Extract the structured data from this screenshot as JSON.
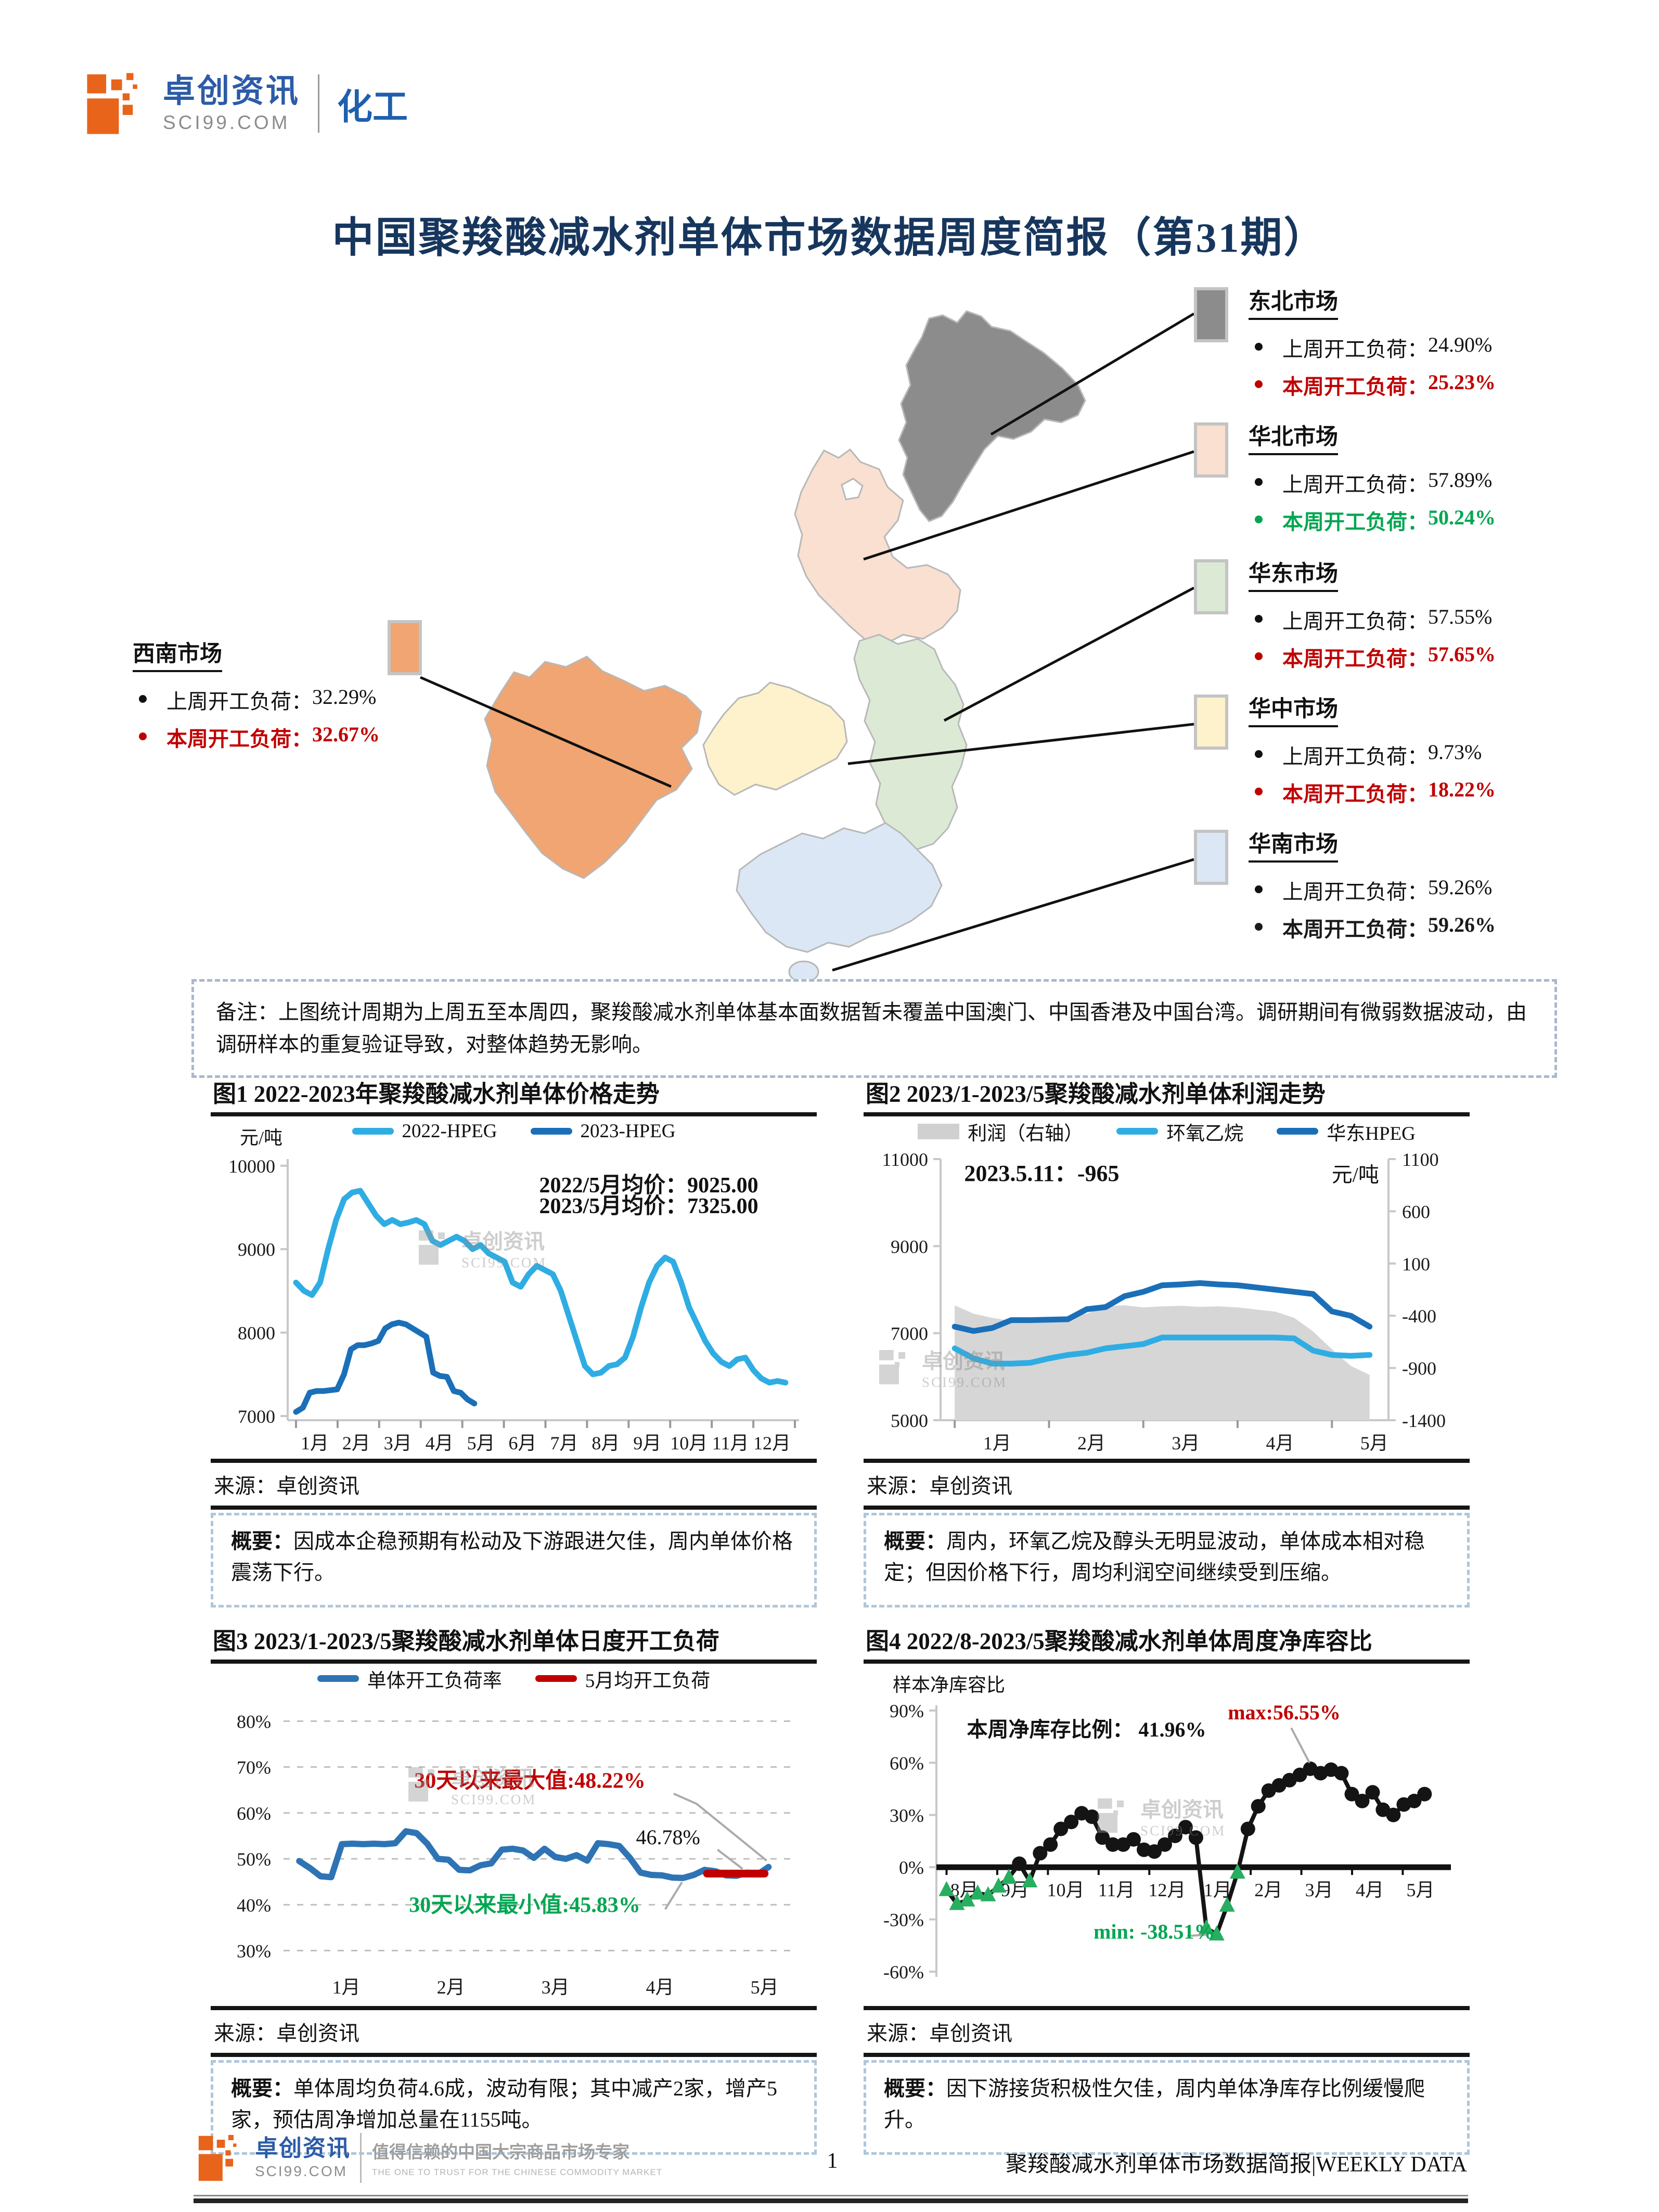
{
  "header": {
    "logo": {
      "brand": "卓创资讯",
      "domain": "SCI99.COM",
      "division": "化工"
    },
    "title": "中国聚羧酸减水剂单体市场数据周度简报（第31期）"
  },
  "map": {
    "markets": [
      {
        "id": "northeast",
        "name": "东北市场",
        "last_week_label": "上周开工负荷：",
        "last_week": "24.90%",
        "this_week_label": "本周开工负荷：",
        "this_week": "25.23%",
        "this_week_color": "#C00000",
        "swatch": "#8C8C8C"
      },
      {
        "id": "north",
        "name": "华北市场",
        "last_week_label": "上周开工负荷：",
        "last_week": "57.89%",
        "this_week_label": "本周开工负荷：",
        "this_week": "50.24%",
        "this_week_color": "#00A651",
        "swatch": "#F9E0D1"
      },
      {
        "id": "east",
        "name": "华东市场",
        "last_week_label": "上周开工负荷：",
        "last_week": "57.55%",
        "this_week_label": "本周开工负荷：",
        "this_week": "57.65%",
        "this_week_color": "#C00000",
        "swatch": "#DCEAD5"
      },
      {
        "id": "central",
        "name": "华中市场",
        "last_week_label": "上周开工负荷：",
        "last_week": "9.73%",
        "this_week_label": "本周开工负荷：",
        "this_week": "18.22%",
        "this_week_color": "#C00000",
        "swatch": "#FDF2CC"
      },
      {
        "id": "south",
        "name": "华南市场",
        "last_week_label": "上周开工负荷：",
        "last_week": "59.26%",
        "this_week_label": "本周开工负荷：",
        "this_week": "59.26%",
        "this_week_color": "#1A1A1A",
        "swatch": "#DBE7F4"
      },
      {
        "id": "southwest",
        "name": "西南市场",
        "last_week_label": "上周开工负荷：",
        "last_week": "32.29%",
        "this_week_label": "本周开工负荷：",
        "this_week": "32.67%",
        "this_week_color": "#C00000",
        "swatch": "#F0A572"
      }
    ]
  },
  "note": {
    "label": "备注：",
    "text": "上图统计周期为上周五至本周四，聚羧酸减水剂单体基本面数据暂未覆盖中国澳门、中国香港及中国台湾。调研期间有微弱数据波动，由调研样本的重复验证导致，对整体趋势无影响。"
  },
  "watermark": {
    "line1": "卓创资讯",
    "line2": "SCI99.COM"
  },
  "charts": [
    {
      "title": "图1 2022-2023年聚羧酸减水剂单体价格走势",
      "source": "来源：卓创资讯",
      "summary_label": "概要：",
      "summary": "因成本企稳预期有松动及下游跟进欠佳，周内单体价格震荡下行。",
      "chart_data": {
        "type": "line",
        "ylabel": "元/吨",
        "xlim": [
          0.8,
          13.1
        ],
        "ylim": [
          6950,
          10080
        ],
        "y_ticks": [
          {
            "y": 7000,
            "t": "7000"
          },
          {
            "y": 8000,
            "t": "8000"
          },
          {
            "y": 9000,
            "t": "9000"
          },
          {
            "y": 10000,
            "t": "10000"
          }
        ],
        "x_marks": [
          1,
          2,
          3,
          4,
          5,
          6,
          7,
          8,
          9,
          10,
          11,
          12,
          13
        ],
        "x_labels": [
          {
            "x": 1.45,
            "t": "1月"
          },
          {
            "x": 2.45,
            "t": "2月"
          },
          {
            "x": 3.45,
            "t": "3月"
          },
          {
            "x": 4.45,
            "t": "4月"
          },
          {
            "x": 5.45,
            "t": "5月"
          },
          {
            "x": 6.45,
            "t": "6月"
          },
          {
            "x": 7.45,
            "t": "7月"
          },
          {
            "x": 8.45,
            "t": "8月"
          },
          {
            "x": 9.45,
            "t": "9月"
          },
          {
            "x": 10.45,
            "t": "10月"
          },
          {
            "x": 11.45,
            "t": "11月"
          },
          {
            "x": 12.45,
            "t": "12月"
          }
        ],
        "m": {
          "l": 148,
          "r": 34,
          "t": 24,
          "b": 74
        },
        "legend": [
          {
            "t": "2022-HPEG",
            "c": "#2FADE3",
            "type": "line"
          },
          {
            "t": "2023-HPEG",
            "c": "#1B6FB8",
            "type": "line"
          }
        ],
        "series": [
          {
            "name": "2022-HPEG",
            "c": "#2FADE3",
            "w": 11,
            "x0": 1.0,
            "dx": 0.193,
            "y": [
              8600,
              8500,
              8450,
              8600,
              9000,
              9350,
              9600,
              9680,
              9700,
              9550,
              9400,
              9300,
              9350,
              9300,
              9320,
              9350,
              9300,
              9100,
              9050,
              9100,
              9150,
              9100,
              9000,
              9050,
              8950,
              8900,
              8850,
              8600,
              8550,
              8700,
              8800,
              8750,
              8700,
              8500,
              8200,
              7900,
              7600,
              7500,
              7520,
              7600,
              7620,
              7700,
              7950,
              8300,
              8600,
              8800,
              8900,
              8850,
              8600,
              8300,
              8100,
              7900,
              7750,
              7650,
              7600,
              7680,
              7700,
              7550,
              7450,
              7400,
              7420,
              7400
            ]
          },
          {
            "name": "2023-HPEG",
            "c": "#1B6FB8",
            "w": 11,
            "x0": 1.0,
            "dx": 0.165,
            "y": [
              7050,
              7100,
              7280,
              7300,
              7300,
              7310,
              7320,
              7500,
              7800,
              7850,
              7850,
              7870,
              7900,
              8050,
              8100,
              8120,
              8100,
              8050,
              8000,
              7950,
              7520,
              7480,
              7470,
              7300,
              7280,
              7200,
              7150
            ]
          }
        ],
        "ann": [
          {
            "x": 6.85,
            "y": 9680,
            "t": "2022/5月均价：9025.00",
            "b": 1,
            "s": 42
          },
          {
            "x": 6.85,
            "y": 9430,
            "t": "2023/5月均价：7325.00",
            "b": 1,
            "s": 42
          }
        ]
      }
    },
    {
      "title": "图2 2023/1-2023/5聚羧酸减水剂单体利润走势",
      "source": "来源：卓创资讯",
      "summary_label": "概要：",
      "summary": "周内，环氧乙烷及醇头无明显波动，单体成本相对稳定；但因价格下行，周均利润空间继续受到压缩。",
      "chart_data": {
        "type": "line+area",
        "xlim": [
          0.85,
          5.6
        ],
        "ylim": [
          5000,
          11000
        ],
        "y_ticks": [
          {
            "y": 5000,
            "t": "5000"
          },
          {
            "y": 7000,
            "t": "7000"
          },
          {
            "y": 9000,
            "t": "9000"
          },
          {
            "y": 11000,
            "t": "11000"
          }
        ],
        "right": {
          "ylim": [
            -1400,
            1100
          ],
          "ticks": [
            {
              "y": 1100,
              "t": "1100"
            },
            {
              "y": 600,
              "t": "600"
            },
            {
              "y": 100,
              "t": "100"
            },
            {
              "y": -400,
              "t": "-400"
            },
            {
              "y": -900,
              "t": "-900"
            },
            {
              "y": -1400,
              "t": "-1400"
            }
          ]
        },
        "x_marks": [
          1,
          2,
          3,
          4,
          5
        ],
        "x_labels": [
          {
            "x": 1.45,
            "t": "1月"
          },
          {
            "x": 2.45,
            "t": "2月"
          },
          {
            "x": 3.45,
            "t": "3月"
          },
          {
            "x": 4.45,
            "t": "4月"
          },
          {
            "x": 5.45,
            "t": "5月"
          }
        ],
        "m": {
          "l": 148,
          "r": 156,
          "t": 24,
          "b": 74
        },
        "legend": [
          {
            "t": "利润（右轴）",
            "c": "#D0D0D0",
            "type": "area"
          },
          {
            "t": "环氧乙烷",
            "c": "#2FADE3",
            "type": "line"
          },
          {
            "t": "华东HPEG",
            "c": "#1B6FB8",
            "type": "line"
          }
        ],
        "series": [
          {
            "name": "利润（右轴）",
            "type": "area",
            "axis": "right",
            "c": "#D6D6D6",
            "x0": 1.0,
            "dx": 0.2,
            "y": [
              -300,
              -380,
              -420,
              -450,
              -430,
              -450,
              -420,
              -380,
              -310,
              -300,
              -320,
              -310,
              -305,
              -315,
              -310,
              -320,
              -340,
              -360,
              -420,
              -550,
              -720,
              -880,
              -965
            ]
          },
          {
            "name": "环氧乙烷",
            "c": "#2FADE3",
            "w": 11,
            "x0": 1.0,
            "dx": 0.2,
            "y": [
              6650,
              6420,
              6300,
              6300,
              6320,
              6420,
              6500,
              6550,
              6650,
              6700,
              6750,
              6900,
              6900,
              6900,
              6900,
              6900,
              6900,
              6900,
              6880,
              6600,
              6500,
              6480,
              6500
            ]
          },
          {
            "name": "华东HPEG",
            "c": "#1B6FB8",
            "w": 11,
            "x0": 1.0,
            "dx": 0.2,
            "y": [
              7150,
              7050,
              7120,
              7300,
              7300,
              7310,
              7320,
              7550,
              7600,
              7850,
              7950,
              8100,
              8120,
              8150,
              8120,
              8100,
              8050,
              8000,
              7950,
              7900,
              7500,
              7400,
              7150
            ]
          }
        ],
        "ann": [
          {
            "x": 1.1,
            "y": 10500,
            "t": "2023.5.11：-965",
            "b": 1,
            "s": 44
          },
          {
            "x": 5.5,
            "y": 10480,
            "t": "元/吨",
            "anchor": "end",
            "s": 40
          }
        ]
      }
    },
    {
      "title": "图3 2023/1-2023/5聚羧酸减水剂单体日度开工负荷",
      "source": "来源：卓创资讯",
      "summary_label": "概要：",
      "summary": "单体周均负荷4.6成，波动有限；其中减产2家，增产5家，预估周净增加总量在1155吨。",
      "chart_data": {
        "type": "line",
        "xlim": [
          0.85,
          5.75
        ],
        "ylim": [
          27,
          83
        ],
        "grid": "dash",
        "no_left_axis": true,
        "no_bottom_axis": true,
        "y_ticks": [
          {
            "y": 30,
            "t": "30%"
          },
          {
            "y": 40,
            "t": "40%"
          },
          {
            "y": 50,
            "t": "50%"
          },
          {
            "y": 60,
            "t": "60%"
          },
          {
            "y": 70,
            "t": "70%"
          },
          {
            "y": 80,
            "t": "80%"
          }
        ],
        "x_labels": [
          {
            "x": 1.45,
            "t": "1月"
          },
          {
            "x": 2.45,
            "t": "2月"
          },
          {
            "x": 3.45,
            "t": "3月"
          },
          {
            "x": 4.45,
            "t": "4月"
          },
          {
            "x": 5.45,
            "t": "5月"
          }
        ],
        "m": {
          "l": 140,
          "r": 40,
          "t": 26,
          "b": 80
        },
        "legend": [
          {
            "t": "单体开工负荷率",
            "c": "#2E74B5",
            "type": "line"
          },
          {
            "t": "5月均开工负荷",
            "c": "#C00000",
            "type": "line"
          }
        ],
        "series": [
          {
            "name": "单体开工负荷率",
            "c": "#2E74B5",
            "w": 12,
            "x0": 1.0,
            "dx": 0.102,
            "y": [
              49.5,
              48.0,
              46.2,
              46.0,
              53.2,
              53.3,
              53.2,
              53.3,
              53.2,
              53.4,
              56.0,
              55.6,
              53.3,
              50.0,
              49.8,
              47.6,
              47.5,
              48.6,
              49.0,
              52.0,
              52.2,
              51.8,
              50.2,
              52.2,
              50.4,
              50.0,
              50.8,
              49.6,
              53.4,
              53.2,
              52.8,
              50.2,
              47.0,
              46.5,
              46.4,
              45.9,
              45.83,
              46.5,
              47.6,
              47.3,
              46.4,
              46.3,
              47.0,
              46.6,
              48.22
            ]
          },
          {
            "name": "5月均开工负荷",
            "c": "#C00000",
            "w": 15,
            "x": [
              4.9,
              5.45
            ],
            "y": [
              46.78,
              46.78
            ]
          }
        ],
        "ann": [
          {
            "x": 2.1,
            "y": 65.5,
            "t": "30天以来最大值:48.22%",
            "c": "#C00000",
            "b": 1,
            "s": 42,
            "leader": [
              [
                4.58,
                64.2
              ],
              [
                4.8,
                62.0
              ],
              [
                5.47,
                49.6
              ]
            ]
          },
          {
            "x": 4.22,
            "y": 53.2,
            "t": "46.78%",
            "s": 40,
            "leader": [
              [
                5.0,
                52.0
              ],
              [
                5.24,
                47.8
              ]
            ]
          },
          {
            "x": 2.05,
            "y": 38.4,
            "t": "30天以来最小值:45.83%",
            "c": "#00A651",
            "b": 1,
            "s": 42,
            "leader": [
              [
                4.5,
                39.0
              ],
              [
                4.66,
                44.9
              ]
            ]
          }
        ]
      }
    },
    {
      "title": "图4 2022/8-2023/5聚羧酸减水剂单体周度净库容比",
      "source": "来源：卓创资讯",
      "summary_label": "概要：",
      "summary": "因下游接货积极性欠佳，周内单体净库存比例缓慢爬升。",
      "chart_data": {
        "type": "line",
        "ylabel": "样本净库容比",
        "xlim": [
          7.8,
          17.95
        ],
        "ylim": [
          -63,
          93
        ],
        "x_axis_zero": 0,
        "y_ticks": [
          {
            "y": 90,
            "t": "90%"
          },
          {
            "y": 60,
            "t": "60%"
          },
          {
            "y": 30,
            "t": "30%"
          },
          {
            "y": 0,
            "t": "0%"
          },
          {
            "y": -30,
            "t": "-30%"
          },
          {
            "y": -60,
            "t": "-60%"
          }
        ],
        "x_marks": [
          8,
          9,
          10,
          11,
          12,
          13,
          14,
          15,
          16,
          17
        ],
        "x_labels": [
          {
            "x": 8.35,
            "t": "8月"
          },
          {
            "x": 9.35,
            "t": "9月"
          },
          {
            "x": 10.35,
            "t": "10月"
          },
          {
            "x": 11.35,
            "t": "11月"
          },
          {
            "x": 12.35,
            "t": "12月"
          },
          {
            "x": 13.35,
            "t": "1月"
          },
          {
            "x": 14.35,
            "t": "2月"
          },
          {
            "x": 15.35,
            "t": "3月"
          },
          {
            "x": 16.35,
            "t": "4月"
          },
          {
            "x": 17.35,
            "t": "5月"
          }
        ],
        "m": {
          "l": 140,
          "r": 36,
          "t": 22,
          "b": 56
        },
        "series": [
          {
            "name": "样本净库容比",
            "c": "#141414",
            "w": 8,
            "x0": 8.0,
            "dx": 0.205,
            "markers": "sign",
            "mneg": "#27AE60",
            "y": [
              -13,
              -21,
              -19,
              -15,
              -16,
              -11,
              -6,
              2,
              -8,
              8,
              13,
              22,
              26,
              31,
              29,
              17,
              13,
              13,
              16,
              10,
              9,
              13,
              18,
              23,
              17,
              -35,
              -38.51,
              -22,
              -3,
              22,
              35,
              44,
              47,
              50,
              53,
              56.55,
              54,
              56,
              54,
              42,
              38,
              43,
              33,
              30,
              36,
              38,
              42
            ]
          }
        ],
        "ann": [
          {
            "x": 8.4,
            "y": 75,
            "t": "本周净库存比例： 41.96%",
            "b": 1,
            "s": 40
          },
          {
            "x": 13.55,
            "y": 85,
            "t": "max:56.55%",
            "c": "#C00000",
            "b": 1,
            "s": 40,
            "leader": [
              [
                14.8,
                80
              ],
              [
                15.16,
                60
              ]
            ]
          },
          {
            "x": 10.9,
            "y": -41,
            "t": "min: -38.51%",
            "c": "#00A651",
            "b": 1,
            "s": 40,
            "leader": [
              [
                12.75,
                -39.5
              ],
              [
                13.15,
                -38.8
              ]
            ]
          }
        ]
      }
    }
  ],
  "footer": {
    "tagline_cn": "值得信赖的中国大宗商品市场专家",
    "tagline_en": "THE ONE TO TRUST FOR THE CHINESE COMMODITY MARKET",
    "page": "1",
    "right": "聚羧酸减水剂单体市场数据简报|WEEKLY DATA"
  }
}
